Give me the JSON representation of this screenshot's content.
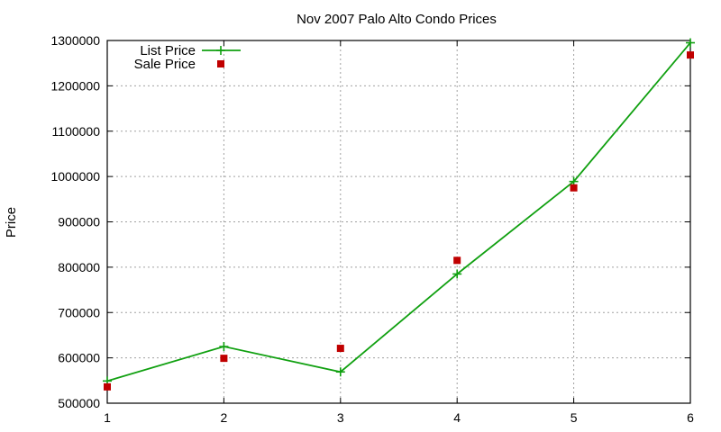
{
  "chart_data": {
    "type": "line",
    "title": "Nov 2007 Palo Alto Condo Prices",
    "xlabel": "",
    "ylabel": "Price",
    "x": [
      1,
      2,
      3,
      4,
      5,
      6
    ],
    "xlim": [
      1,
      6
    ],
    "ylim": [
      500000,
      1300000
    ],
    "xticks": [
      "1",
      "2",
      "3",
      "4",
      "5",
      "6"
    ],
    "yticks": [
      "500000",
      "600000",
      "700000",
      "800000",
      "900000",
      "1000000",
      "1100000",
      "1200000",
      "1300000"
    ],
    "grid": true,
    "legend_position": "top-left",
    "series": [
      {
        "name": "List Price",
        "style": "linespoints",
        "marker": "plus",
        "color": "#10a010",
        "values": [
          549000,
          625000,
          569000,
          785000,
          989000,
          1295000
        ]
      },
      {
        "name": "Sale Price",
        "style": "points",
        "marker": "square",
        "color": "#c00000",
        "values": [
          536000,
          599000,
          621000,
          815000,
          975000,
          1268000
        ]
      }
    ]
  }
}
